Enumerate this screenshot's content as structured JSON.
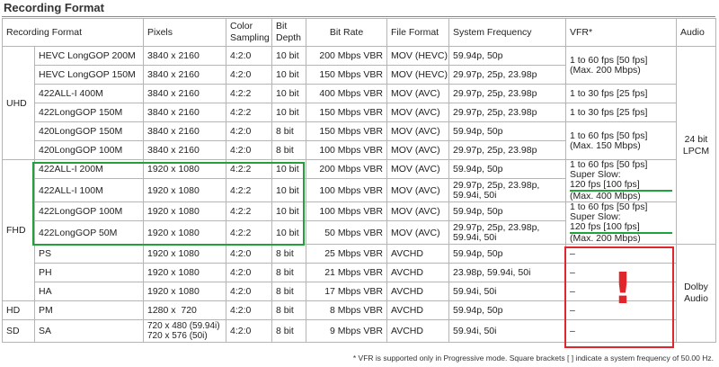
{
  "title": "Recording Format",
  "headers": {
    "format": "Recording Format",
    "pixels": "Pixels",
    "sampling": "Color Sampling",
    "depth": "Bit Depth",
    "bitrate": "Bit Rate",
    "fileformat": "File Format",
    "sysfreq": "System Frequency",
    "vfr": "VFR*",
    "audio": "Audio"
  },
  "groups": {
    "uhd": "UHD",
    "fhd": "FHD",
    "hd": "HD",
    "sd": "SD"
  },
  "audio": {
    "lpcm": "24 bit LPCM",
    "dolby": "Dolby Audio"
  },
  "rows": [
    {
      "format": "HEVC LongGOP 200M",
      "pixels": "3840 x 2160",
      "sampling": "4:2:0",
      "depth": "10 bit",
      "bitrate": "200 Mbps VBR",
      "file": "MOV (HEVC)",
      "sys": "59.94p, 50p"
    },
    {
      "format": "HEVC LongGOP 150M",
      "pixels": "3840 x 2160",
      "sampling": "4:2:0",
      "depth": "10 bit",
      "bitrate": "150 Mbps VBR",
      "file": "MOV (HEVC)",
      "sys": "29.97p, 25p, 23.98p"
    },
    {
      "format": "422ALL-I 400M",
      "pixels": "3840 x 2160",
      "sampling": "4:2:2",
      "depth": "10 bit",
      "bitrate": "400 Mbps VBR",
      "file": "MOV (AVC)",
      "sys": "29.97p, 25p, 23.98p"
    },
    {
      "format": "422LongGOP 150M",
      "pixels": "3840 x 2160",
      "sampling": "4:2:2",
      "depth": "10 bit",
      "bitrate": "150 Mbps VBR",
      "file": "MOV (AVC)",
      "sys": "29.97p, 25p, 23.98p"
    },
    {
      "format": "420LongGOP 150M",
      "pixels": "3840 x 2160",
      "sampling": "4:2:0",
      "depth": "8 bit",
      "bitrate": "150 Mbps VBR",
      "file": "MOV (AVC)",
      "sys": "59.94p, 50p"
    },
    {
      "format": "420LongGOP 100M",
      "pixels": "3840 x 2160",
      "sampling": "4:2:0",
      "depth": "8 bit",
      "bitrate": "100 Mbps VBR",
      "file": "MOV (AVC)",
      "sys": "29.97p, 25p, 23.98p"
    },
    {
      "format": "422ALL-I 200M",
      "pixels": "1920 x 1080",
      "sampling": "4:2:2",
      "depth": "10 bit",
      "bitrate": "200 Mbps VBR",
      "file": "MOV (AVC)",
      "sys": "59.94p, 50p"
    },
    {
      "format": "422ALL-I 100M",
      "pixels": "1920 x 1080",
      "sampling": "4:2:2",
      "depth": "10 bit",
      "bitrate": "100 Mbps VBR",
      "file": "MOV (AVC)",
      "sys": "29.97p, 25p, 23.98p, 59.94i, 50i"
    },
    {
      "format": "422LongGOP 100M",
      "pixels": "1920 x 1080",
      "sampling": "4:2:2",
      "depth": "10 bit",
      "bitrate": "100 Mbps VBR",
      "file": "MOV (AVC)",
      "sys": "59.94p, 50p"
    },
    {
      "format": "422LongGOP 50M",
      "pixels": "1920 x 1080",
      "sampling": "4:2:2",
      "depth": "10 bit",
      "bitrate": "50 Mbps VBR",
      "file": "MOV (AVC)",
      "sys": "29.97p, 25p, 23.98p, 59.94i, 50i"
    },
    {
      "format": "PS",
      "pixels": "1920 x 1080",
      "sampling": "4:2:0",
      "depth": "8 bit",
      "bitrate": "25 Mbps VBR",
      "file": "AVCHD",
      "sys": "59.94p, 50p"
    },
    {
      "format": "PH",
      "pixels": "1920 x 1080",
      "sampling": "4:2:0",
      "depth": "8 bit",
      "bitrate": "21 Mbps VBR",
      "file": "AVCHD",
      "sys": "23.98p, 59.94i, 50i"
    },
    {
      "format": "HA",
      "pixels": "1920 x 1080",
      "sampling": "4:2:0",
      "depth": "8 bit",
      "bitrate": "17 Mbps VBR",
      "file": "AVCHD",
      "sys": "59.94i, 50i"
    },
    {
      "format": "PM",
      "pixels": "1280 x  720",
      "sampling": "4:2:0",
      "depth": "8 bit",
      "bitrate": "8 Mbps VBR",
      "file": "AVCHD",
      "sys": "59.94p, 50p"
    },
    {
      "format": "SA",
      "pixels": "720 x 480 (59.94i) 720 x 576 (50i)",
      "sampling": "4:2:0",
      "depth": "8 bit",
      "bitrate": "9 Mbps VBR",
      "file": "AVCHD",
      "sys": "59.94i, 50i"
    }
  ],
  "vfr": {
    "uhd_hevc": "1 to 60 fps [50 fps] (Max. 200 Mbps)",
    "uhd_422alli": "1 to 30 fps [25 fps]",
    "uhd_422lgop": "1 to 30 fps [25 fps]",
    "uhd_420": "1 to 60 fps [50 fps] (Max. 150 Mbps)",
    "fhd_alli_top": "1 to 60 fps [50 fps]",
    "fhd_alli_mid": "Super Slow:",
    "fhd_alli_ul": "120 fps [100 fps]",
    "fhd_alli_bot": "(Max. 400 Mbps)",
    "fhd_lgop_top": "1 to 60 fps [50 fps]",
    "fhd_lgop_mid": "Super Slow:",
    "fhd_lgop_ul": "120 fps [100 fps]",
    "fhd_lgop_bot": "(Max. 200 Mbps)",
    "dash": "–"
  },
  "annotation": {
    "mark": "!"
  },
  "footnote": "* VFR is supported only in Progressive mode. Square brackets [  ] indicate a system frequency of 50.00 Hz.",
  "colors": {
    "green": "#23a03a",
    "red": "#e0262a",
    "border": "#b5b5b5"
  }
}
